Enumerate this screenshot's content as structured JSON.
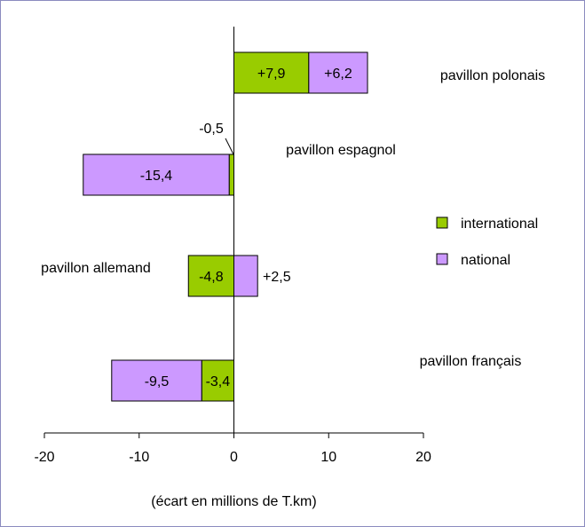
{
  "chart_data": {
    "type": "bar",
    "orientation": "horizontal",
    "stacked": true,
    "title": "",
    "xlabel": "(écart en millions de T.km)",
    "ylabel": "",
    "xlim": [
      -20,
      20
    ],
    "xticks": [
      -20,
      -10,
      0,
      10,
      20
    ],
    "xtick_labels": [
      "-20",
      "-10",
      "0",
      "10",
      "20"
    ],
    "grid": false,
    "legend_position": "right",
    "categories": [
      "pavillon polonais",
      "pavillon espagnol",
      "pavillon allemand",
      "pavillon français"
    ],
    "series": [
      {
        "name": "international",
        "color": "#99cc00",
        "values": [
          7.9,
          -0.5,
          -4.8,
          -3.4
        ],
        "labels": [
          "+7,9",
          "-0,5",
          "-4,8",
          "-3,4"
        ]
      },
      {
        "name": "national",
        "color": "#cc99ff",
        "values": [
          6.2,
          -15.4,
          2.5,
          -9.5
        ],
        "labels": [
          "+6,2",
          "-15,4",
          "+2,5",
          "-9,5"
        ]
      }
    ]
  }
}
